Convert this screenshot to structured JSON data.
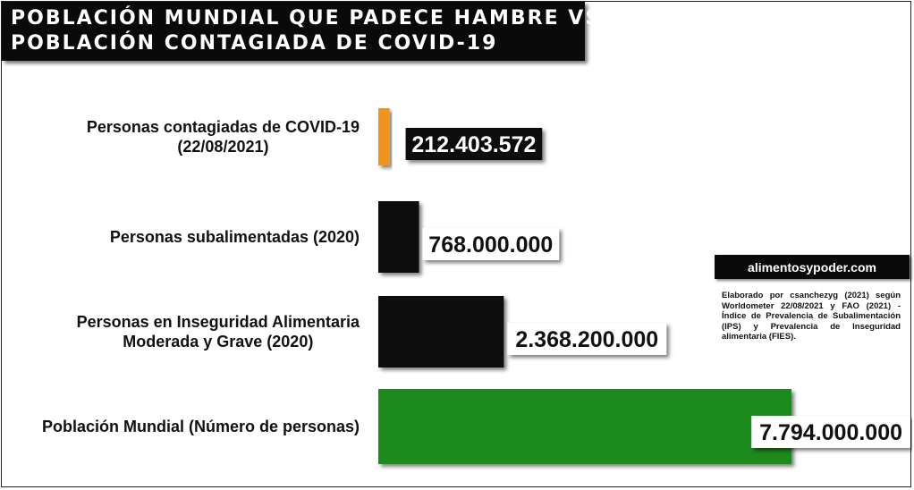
{
  "title": {
    "line1": "POBLACIÓN MUNDIAL QUE PADECE HAMBRE VS.",
    "line2": "POBLACIÓN CONTAGIADA DE COVID-19"
  },
  "brand": "alimentosypoder.com",
  "source_note": "Elaborado por csanchezyg (2021) según Worldometer 22/08/2021 y FAO (2021) - Índice de Prevalencia de Subalimentación (IPS) y Prevalencia de Inseguridad alimentaria (FIES).",
  "colors": {
    "covid": "#f0941c",
    "black_bar": "#0a0a0a",
    "world": "#1f8a1f",
    "label_dark_bg": "#0a0a0a",
    "label_light_bg": "#ffffff"
  },
  "chart_data": {
    "type": "bar",
    "orientation": "horizontal",
    "categories": [
      "Personas contagiadas de COVID-19 (22/08/2021)",
      "Personas subalimentadas (2020)",
      "Personas en Inseguridad Alimentaria Moderada y Grave (2020)",
      "Población Mundial (Número de personas)"
    ],
    "category_lines": [
      [
        "Personas contagiadas de COVID-19",
        "(22/08/2021)"
      ],
      [
        "Personas subalimentadas (2020)"
      ],
      [
        "Personas en Inseguridad Alimentaria",
        "Moderada y Grave (2020)"
      ],
      [
        "Población Mundial (Número de personas)"
      ]
    ],
    "values": [
      212403572,
      768000000,
      2368200000,
      7794000000
    ],
    "value_labels": [
      "212.403.572",
      "768.000.000",
      "2.368.200.000",
      "7.794.000.000"
    ],
    "bar_colors": [
      "#f0941c",
      "#0a0a0a",
      "#0a0a0a",
      "#1f8a1f"
    ],
    "label_styles": [
      "dark",
      "light",
      "light",
      "light"
    ],
    "grid": false,
    "legend": "none"
  }
}
